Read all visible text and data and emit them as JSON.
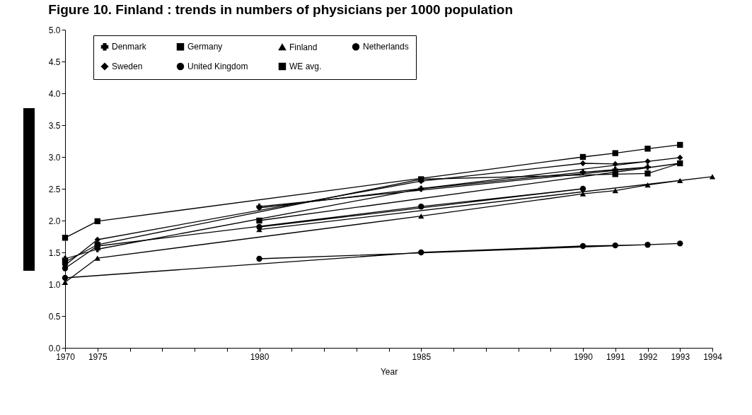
{
  "chart_data": {
    "type": "line",
    "title": "Figure 10. Finland : trends in numbers of physicians per 1000 population",
    "xlabel": "Year",
    "categories": [
      "1970",
      "1975",
      null,
      null,
      null,
      null,
      "1980",
      null,
      null,
      null,
      null,
      "1985",
      null,
      null,
      null,
      null,
      "1990",
      "1991",
      "1992",
      "1993",
      "1994"
    ],
    "series": [
      {
        "name": "Denmark",
        "color": "#000000",
        "marker": "cross",
        "values": [
          1.4,
          1.55,
          null,
          null,
          null,
          null,
          2.22,
          null,
          null,
          null,
          null,
          2.5,
          null,
          null,
          null,
          null,
          2.76,
          2.8,
          2.84,
          null,
          null
        ]
      },
      {
        "name": "Germany",
        "color": "#000000",
        "marker": "square",
        "values": [
          1.73,
          1.99,
          null,
          null,
          null,
          null,
          null,
          null,
          null,
          null,
          null,
          null,
          null,
          null,
          null,
          null,
          3.0,
          3.06,
          3.13,
          3.19,
          null
        ]
      },
      {
        "name": "Finland",
        "color": "#000000",
        "marker": "triangle",
        "values": [
          1.03,
          1.41,
          null,
          null,
          null,
          null,
          1.86,
          null,
          null,
          null,
          null,
          2.07,
          null,
          null,
          null,
          null,
          2.42,
          2.47,
          2.56,
          2.63,
          2.69
        ]
      },
      {
        "name": "Netherlands",
        "color": "#000000",
        "marker": "circle",
        "values": [
          1.25,
          1.6,
          null,
          null,
          null,
          null,
          1.9,
          null,
          null,
          null,
          null,
          2.22,
          null,
          null,
          null,
          null,
          2.5,
          null,
          null,
          null,
          null
        ]
      },
      {
        "name": "Sweden",
        "color": "#000000",
        "marker": "diamond",
        "values": [
          1.3,
          1.7,
          null,
          null,
          null,
          null,
          2.2,
          null,
          null,
          null,
          null,
          2.62,
          null,
          null,
          null,
          null,
          2.9,
          2.89,
          2.93,
          2.99,
          null
        ]
      },
      {
        "name": "United Kingdom",
        "color": "#000000",
        "marker": "circle",
        "values": [
          1.1,
          null,
          null,
          null,
          null,
          null,
          1.4,
          null,
          null,
          null,
          null,
          1.5,
          null,
          null,
          null,
          null,
          1.6,
          1.61,
          1.62,
          1.64,
          null
        ]
      },
      {
        "name": "WE avg.",
        "color": "#000000",
        "marker": "square",
        "values": [
          1.35,
          1.62,
          null,
          null,
          null,
          null,
          2.0,
          null,
          null,
          null,
          null,
          2.65,
          null,
          null,
          null,
          null,
          null,
          2.73,
          2.74,
          2.9,
          null
        ]
      }
    ],
    "ylim": [
      0,
      5
    ],
    "yticks": [
      {
        "value": 0,
        "label": "0.0"
      },
      {
        "value": 0.5,
        "label": "0.5"
      },
      {
        "value": 1,
        "label": "1.0"
      },
      {
        "value": 1.5,
        "label": "1.5"
      },
      {
        "value": 2,
        "label": "2.0"
      },
      {
        "value": 2.5,
        "label": "2.5"
      },
      {
        "value": 3,
        "label": "3.0"
      },
      {
        "value": 3.5,
        "label": "3.5"
      },
      {
        "value": 4,
        "label": "4.0"
      },
      {
        "value": 4.5,
        "label": "4.5"
      },
      {
        "value": 5,
        "label": "5.0"
      }
    ],
    "grid": false,
    "legend": "top",
    "line_style": "solid"
  }
}
